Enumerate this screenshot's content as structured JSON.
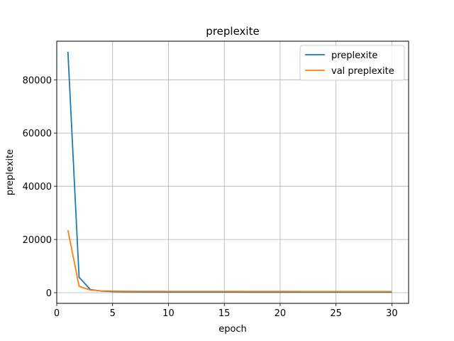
{
  "chart_data": {
    "type": "line",
    "title": "preplexite",
    "xlabel": "epoch",
    "ylabel": "preplexite",
    "xlim": [
      0,
      31.5
    ],
    "ylim": [
      -4000,
      94500
    ],
    "xticks": [
      0,
      5,
      10,
      15,
      20,
      25,
      30
    ],
    "yticks": [
      0,
      20000,
      40000,
      60000,
      80000
    ],
    "grid": true,
    "legend_position": "top-right",
    "x": [
      1,
      2,
      3,
      4,
      5,
      6,
      7,
      8,
      9,
      10,
      11,
      12,
      13,
      14,
      15,
      16,
      17,
      18,
      19,
      20,
      21,
      22,
      23,
      24,
      25,
      26,
      27,
      28,
      29,
      30
    ],
    "series": [
      {
        "name": "preplexite",
        "color": "#1f77b4",
        "values": [
          90500,
          5800,
          1200,
          600,
          400,
          330,
          300,
          280,
          270,
          260,
          250,
          245,
          240,
          235,
          230,
          228,
          225,
          222,
          220,
          218,
          216,
          214,
          212,
          210,
          208,
          206,
          204,
          202,
          200,
          198
        ]
      },
      {
        "name": "val preplexite",
        "color": "#ff7f0e",
        "values": [
          23500,
          2400,
          1000,
          700,
          600,
          560,
          540,
          530,
          520,
          515,
          510,
          505,
          500,
          498,
          495,
          492,
          490,
          488,
          486,
          484,
          482,
          480,
          478,
          476,
          474,
          472,
          470,
          468,
          466,
          464
        ]
      }
    ]
  }
}
